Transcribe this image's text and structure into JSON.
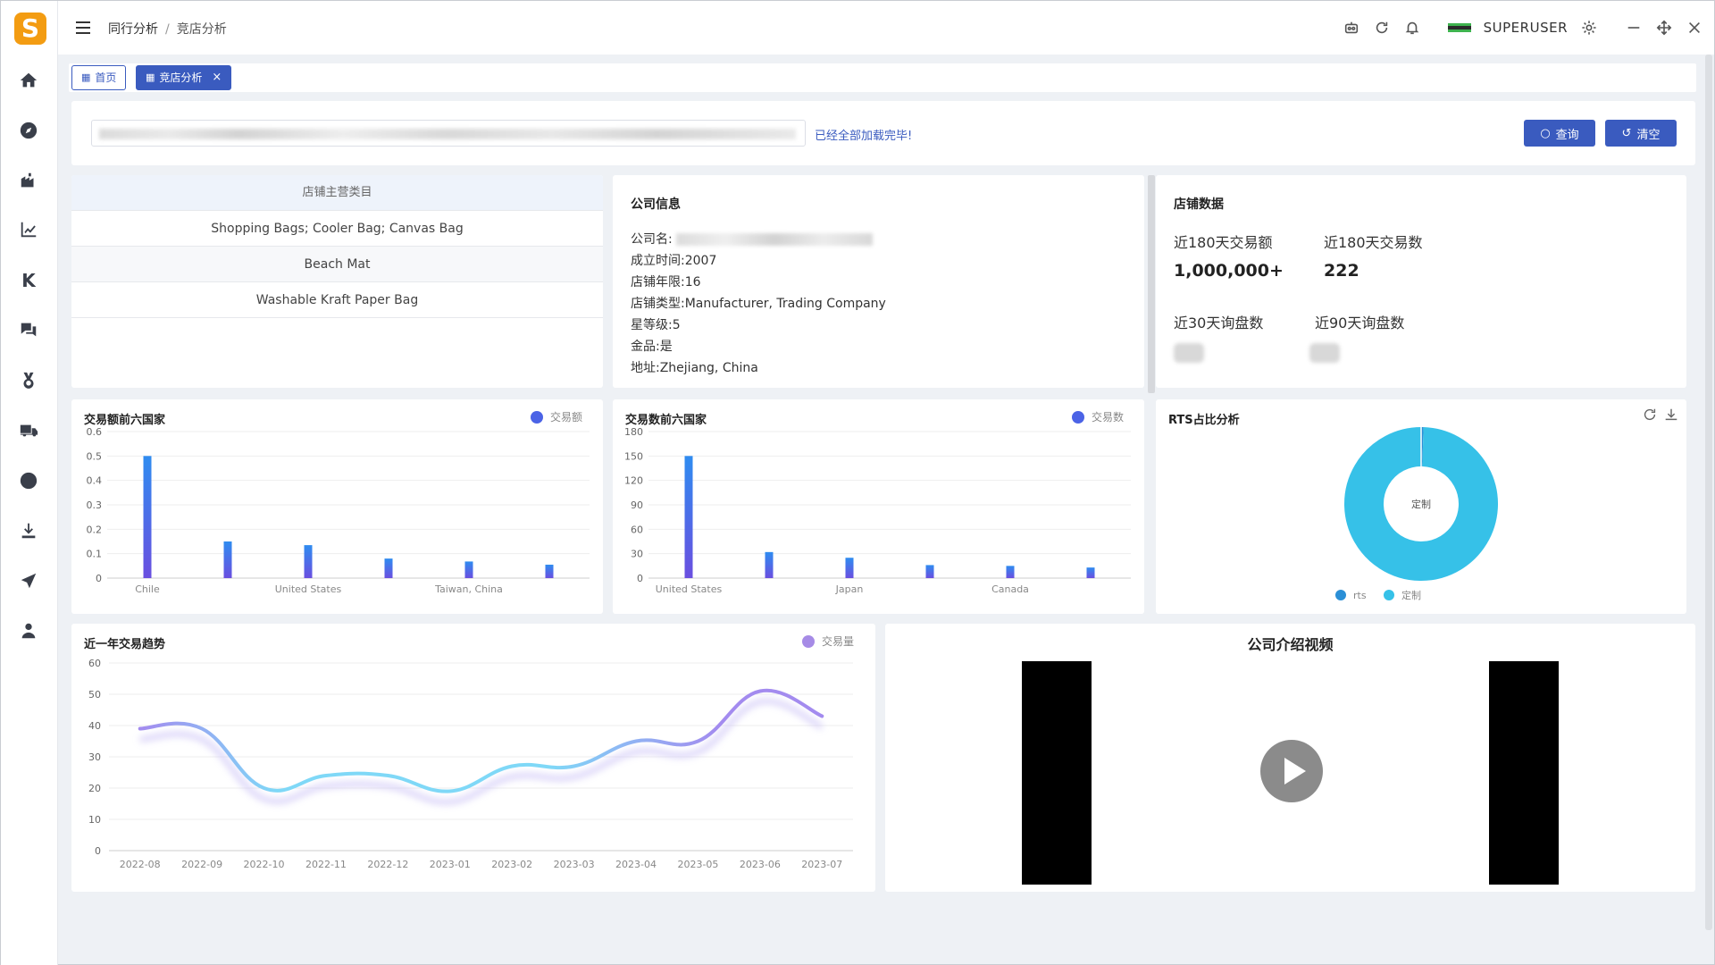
{
  "app": {
    "logo_letter": "S",
    "accent": "#3a5bbf"
  },
  "header": {
    "breadcrumb": [
      "同行分析",
      "竞店分析"
    ],
    "username": "SUPERUSER"
  },
  "tabs": [
    {
      "label": "首页",
      "active": false
    },
    {
      "label": "竞店分析",
      "active": true
    }
  ],
  "search": {
    "placeholder": "",
    "status": "已经全部加载完毕!",
    "query_button": "查询",
    "clear_button": "清空"
  },
  "category": {
    "header": "店铺主营类目",
    "rows": [
      "Shopping Bags; Cooler Bag; Canvas Bag",
      "Beach Mat",
      "Washable Kraft Paper Bag"
    ]
  },
  "company": {
    "title": "公司信息",
    "name_label": "公司名:",
    "founded_label": "成立时间:",
    "founded": "2007",
    "years_label": "店铺年限:",
    "years": "16",
    "type_label": "店铺类型:",
    "type": "Manufacturer, Trading Company",
    "star_label": "星等级:",
    "star": "5",
    "gold_label": "金品:",
    "gold": "是",
    "address_label": "地址:",
    "address": "Zhejiang, China"
  },
  "store": {
    "title": "店铺数据",
    "amount_180_label": "近180天交易额",
    "amount_180": "1,000,000+",
    "count_180_label": "近180天交易数",
    "count_180": "222",
    "inquiry_30_label": "近30天询盘数",
    "inquiry_90_label": "近90天询盘数"
  },
  "chart_data": [
    {
      "type": "bar",
      "title": "交易额前六国家",
      "legend": "交易额",
      "categories": [
        "Chile",
        "",
        "United States",
        "",
        "Taiwan, China",
        ""
      ],
      "values": [
        0.5,
        0.15,
        0.135,
        0.08,
        0.068,
        0.055
      ],
      "ylim": [
        0,
        0.6
      ],
      "yticks": [
        "0",
        "0.1",
        "0.2",
        "0.3",
        "0.4",
        "0.5",
        "0.6"
      ]
    },
    {
      "type": "bar",
      "title": "交易数前六国家",
      "legend": "交易数",
      "categories": [
        "United States",
        "",
        "Japan",
        "",
        "Canada",
        ""
      ],
      "values": [
        150,
        32,
        25,
        16,
        15,
        13
      ],
      "ylim": [
        0,
        180
      ],
      "yticks": [
        "0",
        "30",
        "60",
        "90",
        "120",
        "150",
        "180"
      ]
    },
    {
      "type": "pie",
      "title": "RTS占比分析",
      "center_label": "定制",
      "slices": [
        {
          "name": "rts",
          "value": 0.5,
          "color": "#2b8fd6"
        },
        {
          "name": "定制",
          "value": 99.5,
          "color": "#36c1e8"
        }
      ]
    },
    {
      "type": "line",
      "title": "近一年交易趋势",
      "legend": "交易量",
      "x": [
        "2022-08",
        "2022-09",
        "2022-10",
        "2022-11",
        "2022-12",
        "2023-01",
        "2023-02",
        "2023-03",
        "2023-04",
        "2023-05",
        "2023-06",
        "2023-07"
      ],
      "values": [
        39,
        39,
        20,
        24,
        24,
        19,
        27,
        27,
        35,
        35,
        51,
        43
      ],
      "ylim": [
        0,
        60
      ],
      "yticks": [
        "0",
        "10",
        "20",
        "30",
        "40",
        "50",
        "60"
      ]
    }
  ],
  "video": {
    "title": "公司介绍视频"
  }
}
